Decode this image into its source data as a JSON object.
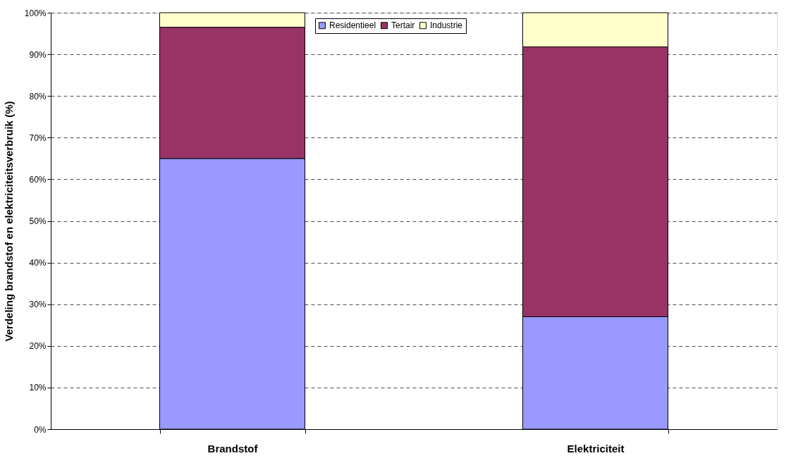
{
  "chart_data": {
    "type": "bar",
    "stacked": true,
    "ylabel": "Verdeling brandstof en elektriciteitsverbruik (%)",
    "categories": [
      "Brandstof",
      "Elektriciteit"
    ],
    "series": [
      {
        "name": "Residentieel",
        "color": "#9999ff",
        "values": [
          65,
          27
        ]
      },
      {
        "name": "Tertair",
        "color": "#993366",
        "values": [
          31.5,
          64.8
        ]
      },
      {
        "name": "Industrie",
        "color": "#ffffcc",
        "values": [
          3.5,
          8.2
        ]
      }
    ],
    "ylim": [
      0,
      100
    ],
    "yticks": [
      {
        "value": 0,
        "label": "0%"
      },
      {
        "value": 10,
        "label": "10%"
      },
      {
        "value": 20,
        "label": "20%"
      },
      {
        "value": 30,
        "label": "30%"
      },
      {
        "value": 40,
        "label": "40%"
      },
      {
        "value": 50,
        "label": "50%"
      },
      {
        "value": 60,
        "label": "60%"
      },
      {
        "value": 70,
        "label": "70%"
      },
      {
        "value": 80,
        "label": "80%"
      },
      {
        "value": 90,
        "label": "90%"
      },
      {
        "value": 100,
        "label": "100%"
      }
    ],
    "grid": "y",
    "legend": "top"
  }
}
